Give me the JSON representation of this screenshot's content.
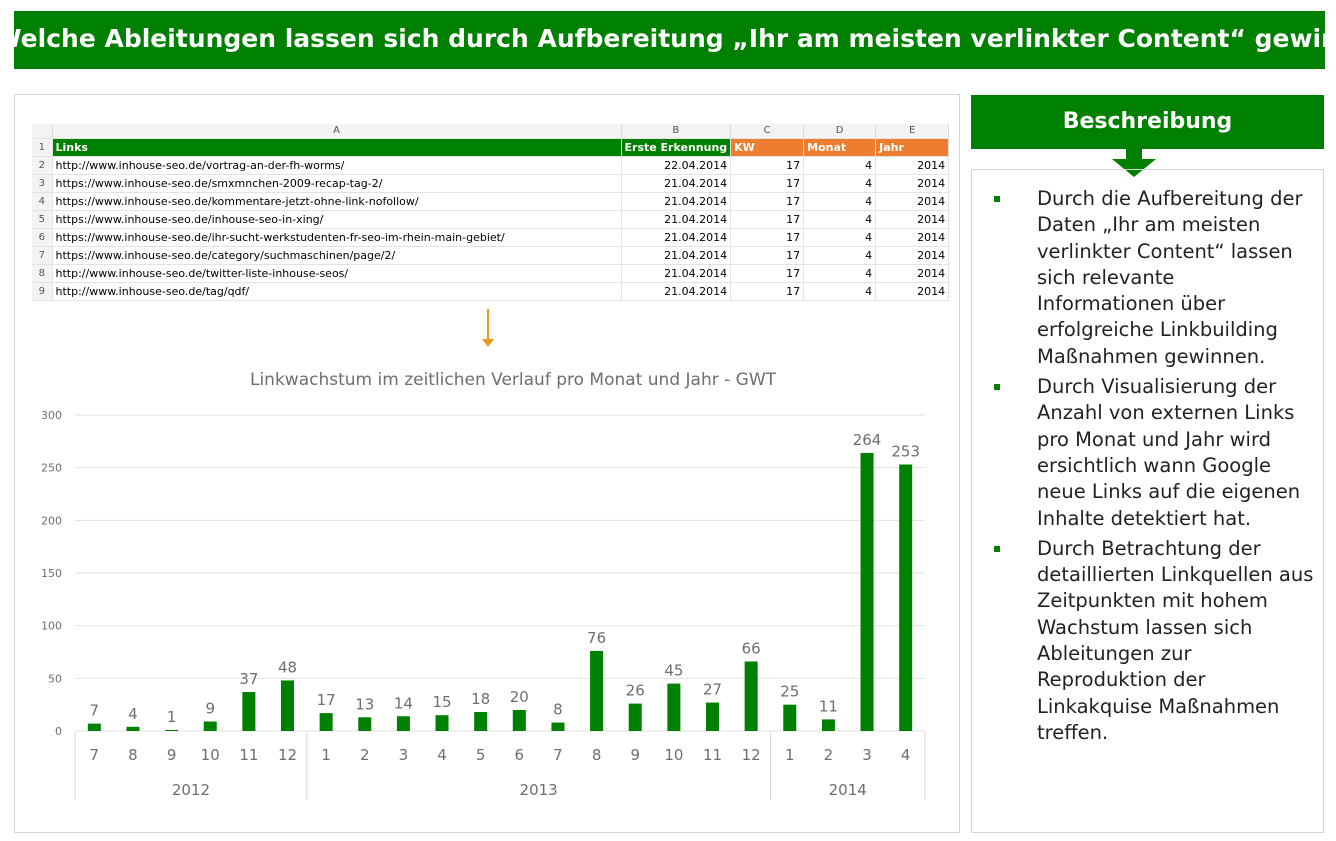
{
  "title": "Welche Ableitungen lassen sich durch Aufbereitung „Ihr am meisten verlinkter Content“ gewinnen?",
  "sidebar": {
    "heading": "Beschreibung",
    "bullets": [
      "Durch die Aufbereitung der Daten „Ihr am meisten verlinkter Content“ lassen sich relevante Informationen über erfolgreiche Linkbuilding Maßnahmen gewinnen.",
      "Durch Visualisierung der Anzahl von externen Links pro Monat und Jahr wird ersichtlich wann Google neue Links auf die eigenen Inhalte detektiert hat.",
      "Durch Betrachtung der detaillierten Linkquellen aus Zeitpunkten mit hohem Wachstum lassen sich Ableitungen zur Reproduktion der Linkakquise Maßnahmen treffen."
    ]
  },
  "spreadsheet": {
    "column_letters": [
      "A",
      "B",
      "C",
      "D",
      "E"
    ],
    "headers": [
      "Links",
      "Erste Erkennung",
      "KW",
      "Monat",
      "Jahr"
    ],
    "rows": [
      {
        "num": "2",
        "link": "http://www.inhouse-seo.de/vortrag-an-der-fh-worms/",
        "date": "22.04.2014",
        "kw": "17",
        "monat": "4",
        "jahr": "2014"
      },
      {
        "num": "3",
        "link": "https://www.inhouse-seo.de/smxmnchen-2009-recap-tag-2/",
        "date": "21.04.2014",
        "kw": "17",
        "monat": "4",
        "jahr": "2014"
      },
      {
        "num": "4",
        "link": "https://www.inhouse-seo.de/kommentare-jetzt-ohne-link-nofollow/",
        "date": "21.04.2014",
        "kw": "17",
        "monat": "4",
        "jahr": "2014"
      },
      {
        "num": "5",
        "link": "https://www.inhouse-seo.de/inhouse-seo-in-xing/",
        "date": "21.04.2014",
        "kw": "17",
        "monat": "4",
        "jahr": "2014"
      },
      {
        "num": "6",
        "link": "https://www.inhouse-seo.de/ihr-sucht-werkstudenten-fr-seo-im-rhein-main-gebiet/",
        "date": "21.04.2014",
        "kw": "17",
        "monat": "4",
        "jahr": "2014"
      },
      {
        "num": "7",
        "link": "https://www.inhouse-seo.de/category/suchmaschinen/page/2/",
        "date": "21.04.2014",
        "kw": "17",
        "monat": "4",
        "jahr": "2014"
      },
      {
        "num": "8",
        "link": "http://www.inhouse-seo.de/twitter-liste-inhouse-seos/",
        "date": "21.04.2014",
        "kw": "17",
        "monat": "4",
        "jahr": "2014"
      },
      {
        "num": "9",
        "link": "http://www.inhouse-seo.de/tag/qdf/",
        "date": "21.04.2014",
        "kw": "17",
        "monat": "4",
        "jahr": "2014"
      }
    ]
  },
  "colors": {
    "green": "#008000",
    "orange": "#ed7d31",
    "arrow": "#ed9a1b"
  },
  "chart_data": {
    "type": "bar",
    "title": "Linkwachstum im zeitlichen Verlauf pro Monat und Jahr - GWT",
    "xlabel": "",
    "ylabel": "",
    "ylim": [
      0,
      300
    ],
    "yticks": [
      0,
      50,
      100,
      150,
      200,
      250,
      300
    ],
    "grid": true,
    "legend": "none",
    "categories": [
      "7",
      "8",
      "9",
      "10",
      "11",
      "12",
      "1",
      "2",
      "3",
      "4",
      "5",
      "6",
      "7",
      "8",
      "9",
      "10",
      "11",
      "12",
      "1",
      "2",
      "3",
      "4"
    ],
    "groups": [
      {
        "label": "2012",
        "count": 6
      },
      {
        "label": "2013",
        "count": 12
      },
      {
        "label": "2014",
        "count": 4
      }
    ],
    "values": [
      7,
      4,
      1,
      9,
      37,
      48,
      17,
      13,
      14,
      15,
      18,
      20,
      8,
      76,
      26,
      45,
      27,
      66,
      25,
      11,
      264,
      253
    ],
    "bar_color": "#008000"
  }
}
